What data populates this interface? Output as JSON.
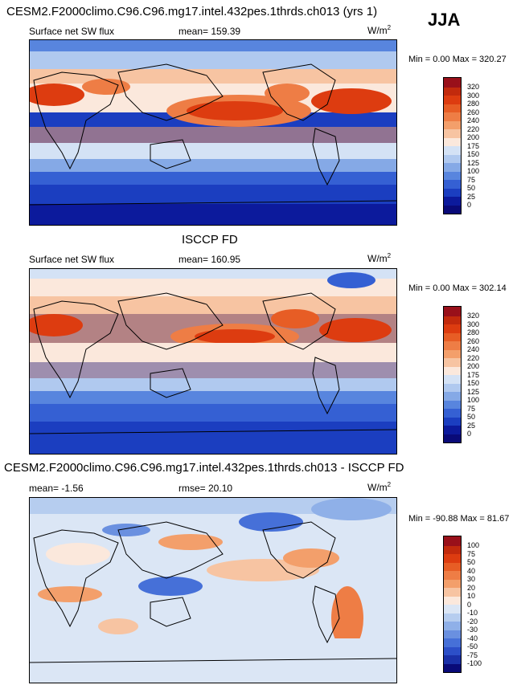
{
  "season": "JJA",
  "panels": [
    {
      "id": "model",
      "title": "CESM2.F2000climo.C96.C96.mg17.intel.432pes.1thrds.ch013 (yrs 1)",
      "left_label": "Surface net SW flux",
      "mid_label": "mean= 159.39",
      "units": "W/m",
      "units_sup": "2",
      "minmax": "Min =   0.00 Max = 320.27",
      "levels": [
        "320",
        "300",
        "280",
        "260",
        "240",
        "220",
        "200",
        "175",
        "150",
        "125",
        "100",
        "75",
        "50",
        "25",
        "0"
      ],
      "colors": [
        "#99101a",
        "#c22a0d",
        "#dd3c10",
        "#e75d25",
        "#ee7d45",
        "#f39f6b",
        "#f7c4a2",
        "#fbe8dc",
        "#d4e2f5",
        "#b0c9ef",
        "#85a9e6",
        "#5885de",
        "#3560d3",
        "#1b3ec0",
        "#0c1a9c",
        "#090a78"
      ]
    },
    {
      "id": "obs",
      "title": "ISCCP FD",
      "left_label": "Surface net SW flux",
      "mid_label": "mean= 160.95",
      "units": "W/m",
      "units_sup": "2",
      "minmax": "Min =   0.00 Max = 302.14",
      "levels": [
        "320",
        "300",
        "280",
        "260",
        "240",
        "220",
        "200",
        "175",
        "150",
        "125",
        "100",
        "75",
        "50",
        "25",
        "0"
      ],
      "colors": [
        "#99101a",
        "#c22a0d",
        "#dd3c10",
        "#e75d25",
        "#ee7d45",
        "#f39f6b",
        "#f7c4a2",
        "#fbe8dc",
        "#d4e2f5",
        "#b0c9ef",
        "#85a9e6",
        "#5885de",
        "#3560d3",
        "#1b3ec0",
        "#0c1a9c",
        "#090a78"
      ]
    },
    {
      "id": "diff",
      "title": "CESM2.F2000climo.C96.C96.mg17.intel.432pes.1thrds.ch013 - ISCCP FD",
      "left_label": "mean=  -1.56",
      "mid_label": "rmse=  20.10",
      "units": "W/m",
      "units_sup": "2",
      "minmax": "Min = -90.88 Max =  81.67",
      "levels": [
        "100",
        "75",
        "50",
        "40",
        "30",
        "20",
        "10",
        "0",
        "-10",
        "-20",
        "-30",
        "-40",
        "-50",
        "-75",
        "-100"
      ],
      "colors": [
        "#99101a",
        "#c22a0d",
        "#dd3c10",
        "#e75d25",
        "#ee7d45",
        "#f39f6b",
        "#f7c4a2",
        "#fbe8dc",
        "#dbe6f5",
        "#b6cdef",
        "#8fb0e8",
        "#6a90e0",
        "#4670d8",
        "#2c4fc8",
        "#1a30a8",
        "#090a78"
      ]
    }
  ],
  "chart_data": [
    {
      "type": "heatmap",
      "title": "CESM2.F2000climo.C96.C96.mg17.intel.432pes.1thrds.ch013 (yrs 1)",
      "variable": "Surface net SW flux",
      "units": "W/m^2",
      "mean": 159.39,
      "min": 0.0,
      "max": 320.27,
      "contour_levels": [
        0,
        25,
        50,
        75,
        100,
        125,
        150,
        175,
        200,
        220,
        240,
        260,
        280,
        300,
        320
      ]
    },
    {
      "type": "heatmap",
      "title": "ISCCP FD",
      "variable": "Surface net SW flux",
      "units": "W/m^2",
      "mean": 160.95,
      "min": 0.0,
      "max": 302.14,
      "contour_levels": [
        0,
        25,
        50,
        75,
        100,
        125,
        150,
        175,
        200,
        220,
        240,
        260,
        280,
        300,
        320
      ]
    },
    {
      "type": "heatmap",
      "title": "CESM2.F2000climo.C96.C96.mg17.intel.432pes.1thrds.ch013 - ISCCP FD",
      "variable": "Surface net SW flux difference",
      "units": "W/m^2",
      "mean": -1.56,
      "rmse": 20.1,
      "min": -90.88,
      "max": 81.67,
      "contour_levels": [
        -100,
        -75,
        -50,
        -40,
        -30,
        -20,
        -10,
        0,
        10,
        20,
        30,
        40,
        50,
        75,
        100
      ]
    }
  ]
}
